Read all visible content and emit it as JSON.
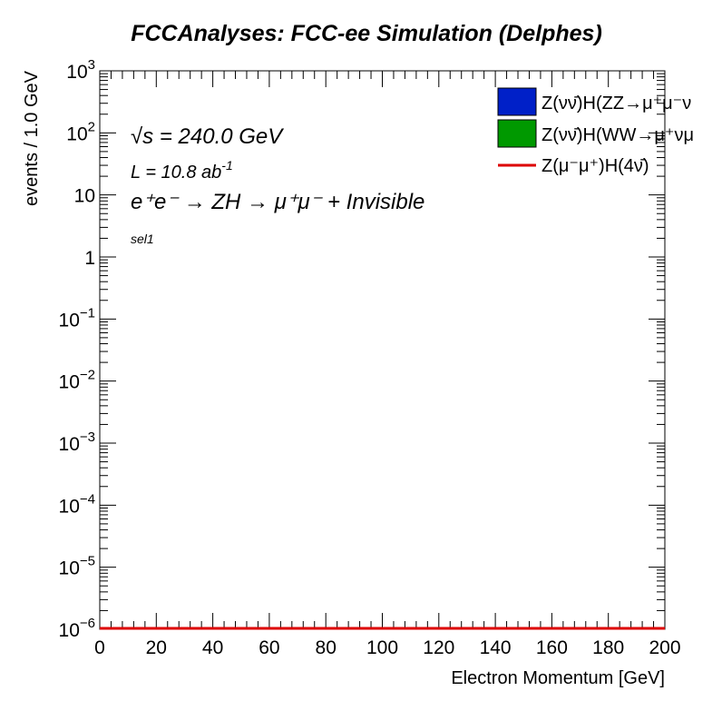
{
  "chart_data": {
    "type": "line",
    "title": "FCCAnalyses: FCC-ee Simulation (Delphes)",
    "xlabel": "Electron Momentum [GeV]",
    "ylabel": "events / 1.0 GeV",
    "xlim": [
      0,
      200
    ],
    "ylim": [
      1e-06,
      1000
    ],
    "y_scale": "log",
    "grid": false,
    "x_ticks": [
      0,
      20,
      40,
      60,
      80,
      100,
      120,
      140,
      160,
      180,
      200
    ],
    "x_tick_labels": [
      "0",
      "20",
      "40",
      "60",
      "80",
      "100",
      "120",
      "140",
      "160",
      "180",
      "200"
    ],
    "y_ticks": [
      1e-06,
      1e-05,
      0.0001,
      0.001,
      0.01,
      0.1,
      1,
      10,
      100,
      1000
    ],
    "y_tick_labels": [
      {
        "base": "10",
        "exp": "−6"
      },
      {
        "base": "10",
        "exp": "−5"
      },
      {
        "base": "10",
        "exp": "−4"
      },
      {
        "base": "10",
        "exp": "−3"
      },
      {
        "base": "10",
        "exp": "−2"
      },
      {
        "base": "10",
        "exp": "−1"
      },
      {
        "base": "1",
        "exp": ""
      },
      {
        "base": "10",
        "exp": ""
      },
      {
        "base": "10",
        "exp": "2"
      },
      {
        "base": "10",
        "exp": "3"
      }
    ],
    "annotations": {
      "sqrt_s": "√s = 240.0 GeV",
      "lumi": "L = 10.8 ab",
      "lumi_exp": "-1",
      "process": "e⁺e⁻ → ZH → μ⁺μ⁻ + Invisible",
      "selection": "sel1"
    },
    "legend_position": "top-right",
    "series": [
      {
        "name": "Z(νν̄)H(ZZ→μ⁺μ⁻ν",
        "style": "filled",
        "color": "#0020c8"
      },
      {
        "name": "Z(νν̄)H(WW→μ⁺νμ",
        "style": "filled",
        "color": "#009900"
      },
      {
        "name": "Z(μ⁻μ⁺)H(4ν̄)",
        "style": "line",
        "color": "#dd0000"
      }
    ],
    "signal_line": {
      "x": [
        0,
        200
      ],
      "y": [
        1e-06,
        1e-06
      ]
    }
  }
}
